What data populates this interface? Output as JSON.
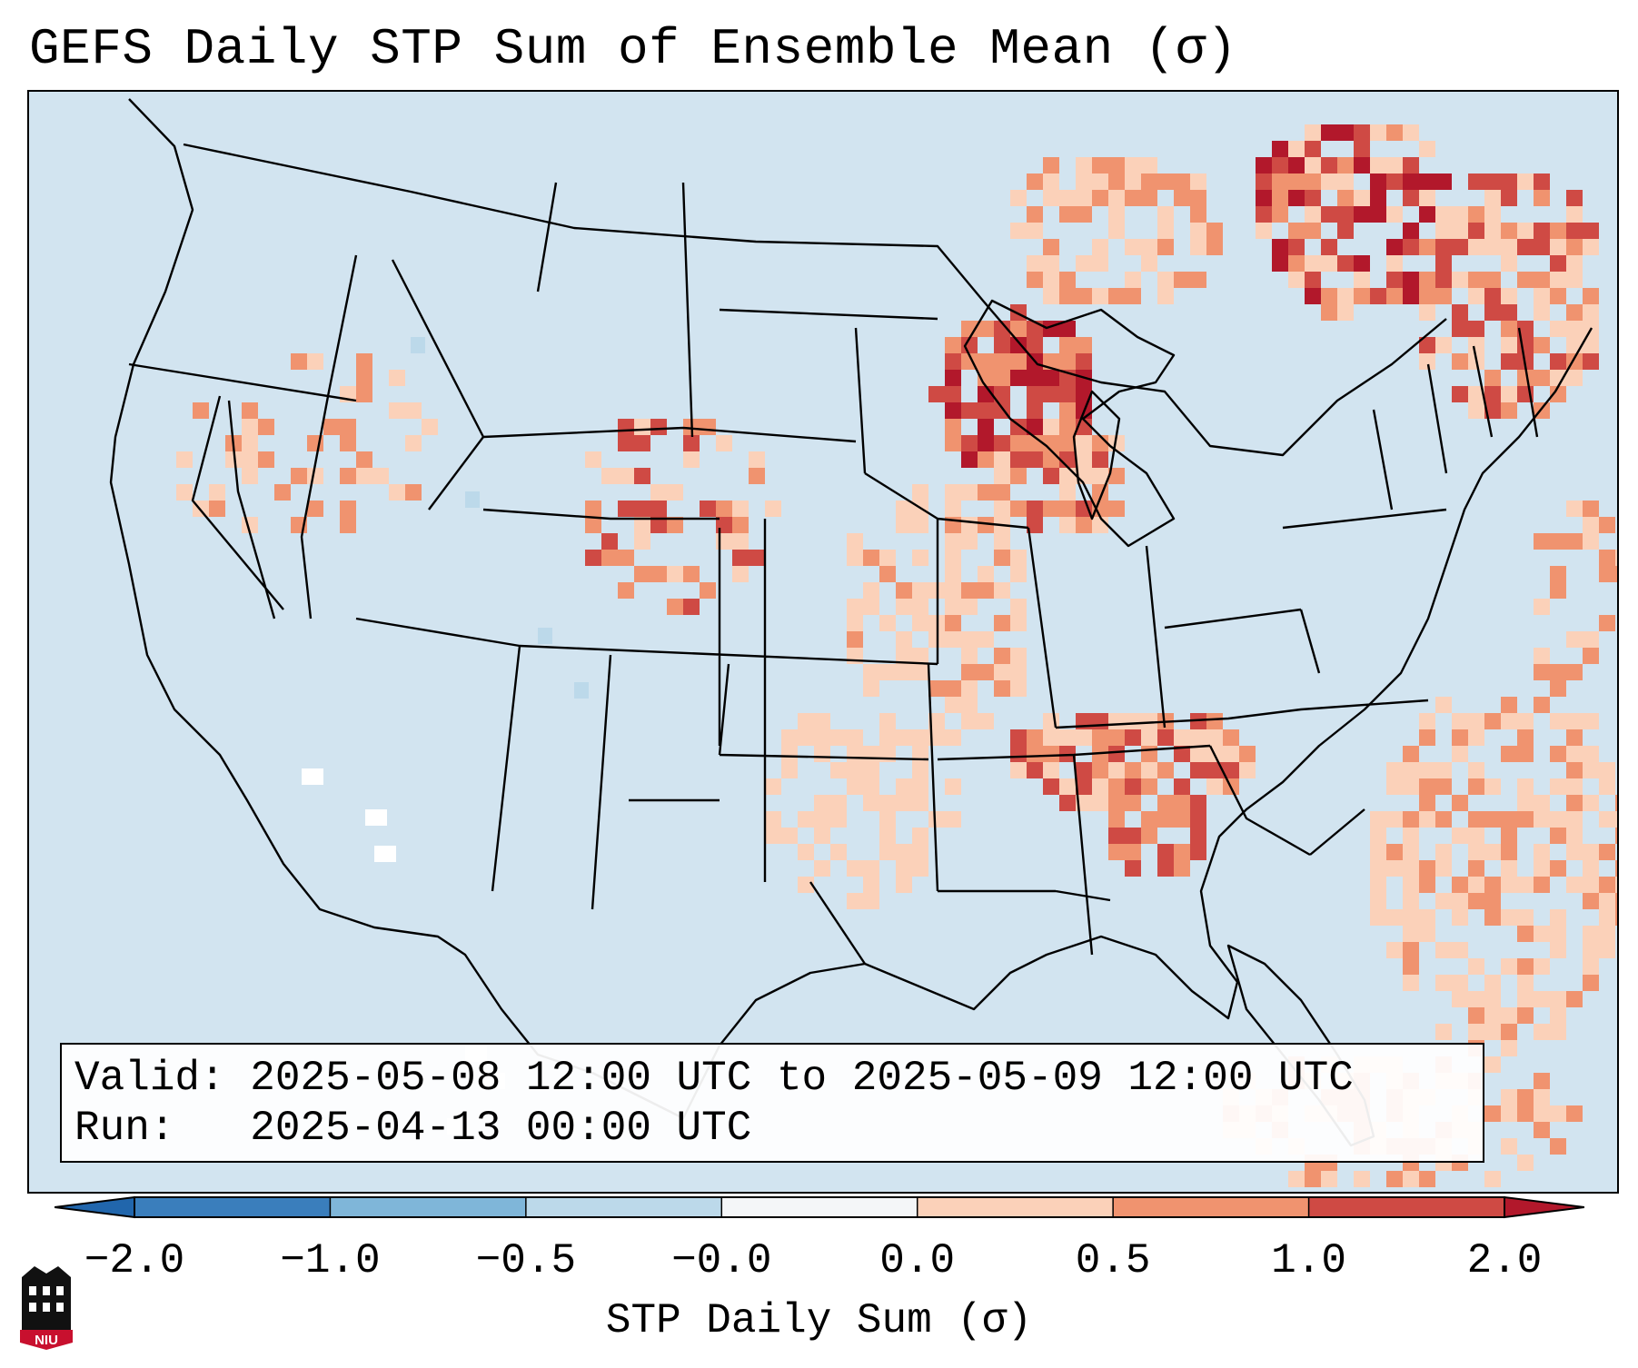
{
  "title": "GEFS Daily STP Sum of Ensemble Mean (σ)",
  "info": {
    "valid_label": "Valid:",
    "valid_value": "2025-05-08 12:00 UTC to 2025-05-09 12:00 UTC",
    "run_label": "Run:",
    "run_value": "2025-04-13 00:00 UTC"
  },
  "colorbar": {
    "label": "STP Daily Sum (σ)",
    "ticks": [
      "−2.0",
      "−1.0",
      "−0.5",
      "−0.0",
      "0.0",
      "0.5",
      "1.0",
      "2.0"
    ],
    "bin_colors": [
      "#3a7ebc",
      "#7fb6d9",
      "#bcd9ea",
      "#f4f6f8",
      "#fbd1b9",
      "#f0936f",
      "#cf4a44"
    ],
    "extend_low_color": "#2166ac",
    "extend_high_color": "#b2182b"
  },
  "map": {
    "background_color": "#d2e4f0",
    "region": "Contiguous United States",
    "highlighted_regions": [
      "Upper Midwest",
      "Great Lakes",
      "Tennessee Valley",
      "Northeast Canada",
      "Western Atlantic"
    ]
  },
  "logo": {
    "text": "NIU",
    "icon": "niu-building-logo"
  }
}
